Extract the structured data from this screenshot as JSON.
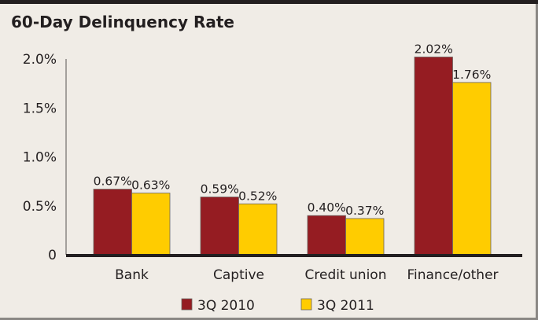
{
  "chart_data": {
    "type": "bar",
    "title": "60-Day Delinquency Rate",
    "categories": [
      "Bank",
      "Captive",
      "Credit union",
      "Finance/other"
    ],
    "series": [
      {
        "name": "3Q 2010",
        "values": [
          0.67,
          0.59,
          0.4,
          2.02
        ],
        "labels": [
          "0.67%",
          "0.59%",
          "0.40%",
          "2.02%"
        ],
        "color": "#951c22"
      },
      {
        "name": "3Q 2011",
        "values": [
          0.63,
          0.52,
          0.37,
          1.76
        ],
        "labels": [
          "0.63%",
          "0.52%",
          "0.37%",
          "1.76%"
        ],
        "color": "#ffcc00"
      }
    ],
    "yticks": [
      {
        "v": 0,
        "label": "0"
      },
      {
        "v": 0.5,
        "label": "0.5%"
      },
      {
        "v": 1.0,
        "label": "1.0%"
      },
      {
        "v": 1.5,
        "label": "1.5%"
      },
      {
        "v": 2.0,
        "label": "2.0%"
      }
    ],
    "ylim": [
      0,
      2.0
    ],
    "xlabel": "",
    "ylabel": "",
    "grid": false,
    "legend": "bottom"
  }
}
